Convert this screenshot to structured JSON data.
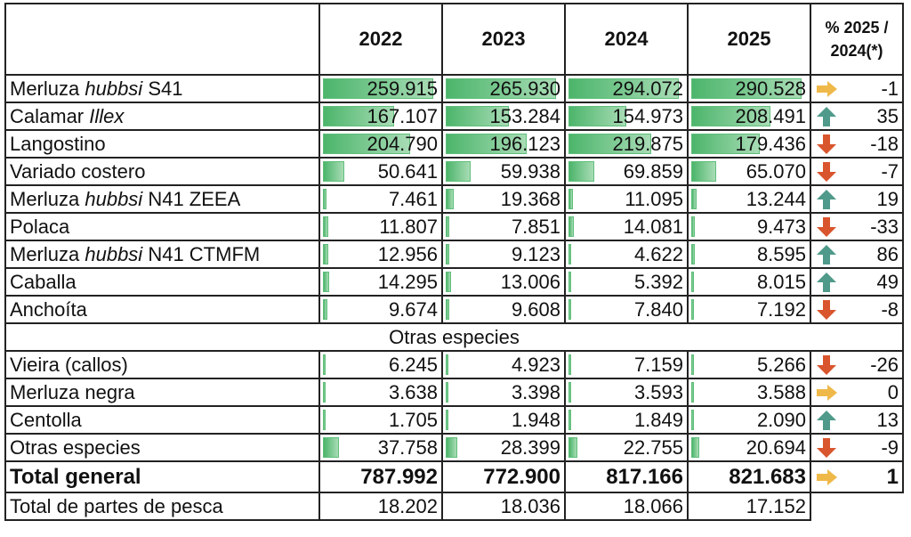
{
  "header": {
    "years": [
      "2022",
      "2023",
      "2024",
      "2025"
    ],
    "pct": [
      "% 2025 /",
      "2024(*)"
    ]
  },
  "rows": [
    {
      "name": [
        {
          "text": "Merluza "
        },
        {
          "text": "hubbsi",
          "italic": true
        },
        {
          "text": " S41"
        }
      ],
      "values": [
        "259.915",
        "265.930",
        "294.072",
        "290.528"
      ],
      "pct": "-1"
    },
    {
      "name": [
        {
          "text": "Calamar "
        },
        {
          "text": "Illex",
          "italic": true
        }
      ],
      "values": [
        "167.107",
        "153.284",
        "154.973",
        "208.491"
      ],
      "pct": "35"
    },
    {
      "name": [
        {
          "text": "Langostino"
        }
      ],
      "values": [
        "204.790",
        "196.123",
        "219.875",
        "179.436"
      ],
      "pct": "-18"
    },
    {
      "name": [
        {
          "text": "Variado costero"
        }
      ],
      "values": [
        "50.641",
        "59.938",
        "69.859",
        "65.070"
      ],
      "pct": "-7"
    },
    {
      "name": [
        {
          "text": "Merluza "
        },
        {
          "text": "hubbsi",
          "italic": true
        },
        {
          "text": " N41 ZEEA"
        }
      ],
      "values": [
        "7.461",
        "19.368",
        "11.095",
        "13.244"
      ],
      "pct": "19"
    },
    {
      "name": [
        {
          "text": "Polaca"
        }
      ],
      "values": [
        "11.807",
        "7.851",
        "14.081",
        "9.473"
      ],
      "pct": "-33"
    },
    {
      "name": [
        {
          "text": "Merluza "
        },
        {
          "text": "hubbsi",
          "italic": true
        },
        {
          "text": " N41 CTMFM"
        }
      ],
      "values": [
        "12.956",
        "9.123",
        "4.622",
        "8.595"
      ],
      "pct": "86"
    },
    {
      "name": [
        {
          "text": "Caballa"
        }
      ],
      "values": [
        "14.295",
        "13.006",
        "5.392",
        "8.015"
      ],
      "pct": "49"
    },
    {
      "name": [
        {
          "text": "Anchoíta"
        }
      ],
      "values": [
        "9.674",
        "9.608",
        "7.840",
        "7.192"
      ],
      "pct": "-8"
    }
  ],
  "section": "Otras especies",
  "rows2": [
    {
      "name": [
        {
          "text": "Vieira (callos)"
        }
      ],
      "values": [
        "6.245",
        "4.923",
        "7.159",
        "5.266"
      ],
      "pct": "-26"
    },
    {
      "name": [
        {
          "text": "Merluza negra"
        }
      ],
      "values": [
        "3.638",
        "3.398",
        "3.593",
        "3.588"
      ],
      "pct": "0"
    },
    {
      "name": [
        {
          "text": "Centolla"
        }
      ],
      "values": [
        "1.705",
        "1.948",
        "1.849",
        "2.090"
      ],
      "pct": "13"
    },
    {
      "name": [
        {
          "text": "Otras especies"
        }
      ],
      "values": [
        "37.758",
        "28.399",
        "22.755",
        "20.694"
      ],
      "pct": "-9"
    }
  ],
  "total": {
    "label": "Total general",
    "values": [
      "787.992",
      "772.900",
      "817.166",
      "821.683"
    ],
    "pct": "1"
  },
  "partes": {
    "label": "Total de partes de pesca",
    "values": [
      "18.202",
      "18.036",
      "18.066",
      "17.152"
    ]
  }
}
